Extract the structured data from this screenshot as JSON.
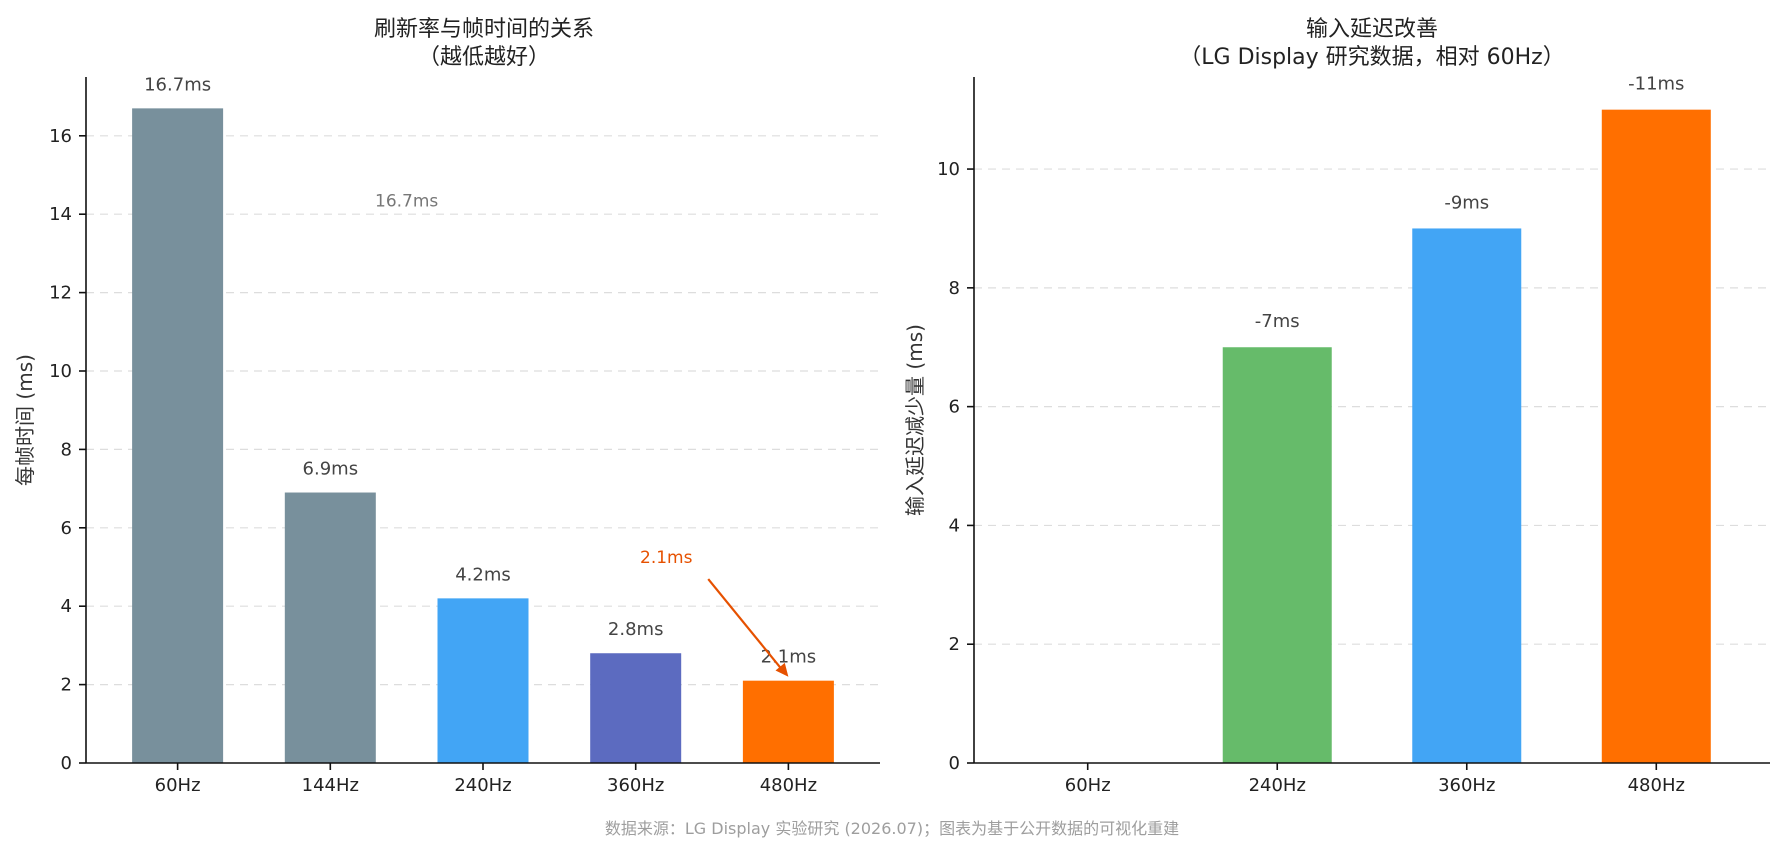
{
  "chart_data": [
    {
      "type": "bar",
      "title": [
        "刷新率与帧时间的关系",
        "（越低越好）"
      ],
      "ylabel": "每帧时间 (ms)",
      "ylim": [
        0,
        17.5
      ],
      "yticks": [
        0,
        2,
        4,
        6,
        8,
        10,
        12,
        14,
        16
      ],
      "grid": true,
      "categories": [
        "60Hz",
        "144Hz",
        "240Hz",
        "360Hz",
        "480Hz"
      ],
      "values": [
        16.7,
        6.9,
        4.2,
        2.8,
        2.1
      ],
      "labels": [
        "16.7ms",
        "6.9ms",
        "4.2ms",
        "2.8ms",
        "2.1ms"
      ],
      "colors": [
        "#78909C",
        "#78909C",
        "#42A5F5",
        "#5C6BC0",
        "#FF6F00"
      ],
      "annotations": [
        {
          "text": "16.7ms",
          "x": 1.5,
          "y": 14.2,
          "color": "#777777"
        },
        {
          "text": "2.1ms",
          "x": 3.2,
          "y": 5.1,
          "color": "#E65100",
          "arrow_to": {
            "x": 4,
            "y": 2.2
          }
        }
      ]
    },
    {
      "type": "bar",
      "title": [
        "输入延迟改善",
        "（LG Display 研究数据，相对 60Hz）"
      ],
      "ylabel": "输入延迟减少量 (ms)",
      "ylim": [
        0,
        11.55
      ],
      "yticks": [
        0,
        2,
        4,
        6,
        8,
        10
      ],
      "grid": true,
      "categories": [
        "60Hz",
        "240Hz",
        "360Hz",
        "480Hz"
      ],
      "values": [
        0,
        7,
        9,
        11
      ],
      "labels": [
        "",
        "-7ms",
        "-9ms",
        "-11ms"
      ],
      "label_color": "#E65100",
      "colors": [
        "#9E9E9E",
        "#66BB6A",
        "#42A5F5",
        "#FF6F00"
      ]
    }
  ],
  "source_note": "数据来源：LG Display 实验研究 (2026.07)；图表为基于公开数据的可视化重建"
}
